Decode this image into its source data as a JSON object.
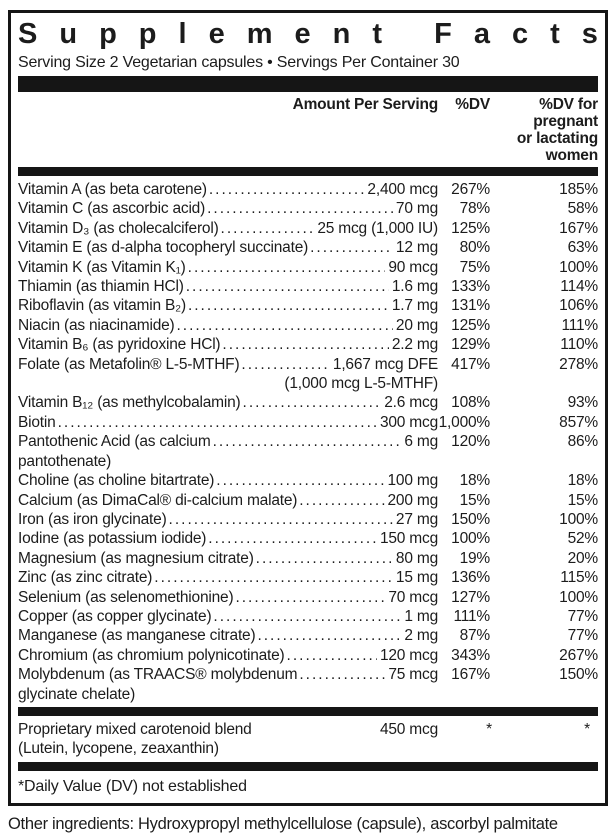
{
  "label": {
    "title": "Supplement Facts",
    "serving_line": "Serving Size 2 Vegetarian capsules • Servings Per Container 30",
    "columns": {
      "amount_header": "Amount Per Serving",
      "dv_header": "%DV",
      "pregnant_header_lines": [
        "%DV for",
        "pregnant",
        "or lactating",
        "women"
      ]
    },
    "rows": [
      {
        "name": "Vitamin A (as beta carotene)",
        "amount": "2,400 mcg",
        "dv": "267%",
        "pdv": "185%"
      },
      {
        "name": "Vitamin C (as ascorbic acid)",
        "amount": "70 mg",
        "dv": "78%",
        "pdv": "58%"
      },
      {
        "name": "Vitamin D₃ (as cholecalciferol)",
        "amount": "25 mcg (1,000 IU)",
        "dv": "125%",
        "pdv": "167%"
      },
      {
        "name": "Vitamin E (as d-alpha tocopheryl succinate)",
        "amount": "12 mg",
        "dv": "80%",
        "pdv": "63%"
      },
      {
        "name": "Vitamin K (as Vitamin K₁)",
        "amount": "90 mcg",
        "dv": "75%",
        "pdv": "100%"
      },
      {
        "name": "Thiamin (as thiamin HCl)",
        "amount": "1.6 mg",
        "dv": "133%",
        "pdv": "114%"
      },
      {
        "name": "Riboflavin (as vitamin B₂)",
        "amount": "1.7 mg",
        "dv": "131%",
        "pdv": "106%"
      },
      {
        "name": "Niacin (as niacinamide)",
        "amount": "20 mg",
        "dv": "125%",
        "pdv": "111%"
      },
      {
        "name": "Vitamin B₆ (as pyridoxine HCl)",
        "amount": "2.2 mg",
        "dv": "129%",
        "pdv": "110%"
      },
      {
        "name": "Folate (as Metafolin® L-5-MTHF)",
        "amount": "1,667 mcg DFE",
        "dv": "417%",
        "pdv": "278%",
        "continuation": "(1,000 mcg L-5-MTHF)",
        "continuation_align": "right"
      },
      {
        "name": "Vitamin B₁₂ (as methylcobalamin)",
        "amount": "2.6 mcg",
        "dv": "108%",
        "pdv": "93%"
      },
      {
        "name": "Biotin",
        "amount": "300 mcg",
        "dv": "1,000%",
        "pdv": "857%"
      },
      {
        "name": "Pantothenic Acid (as calcium",
        "amount": "6 mg",
        "dv": "120%",
        "pdv": "86%",
        "continuation": "pantothenate)",
        "continuation_align": "left"
      },
      {
        "name": "Choline (as choline bitartrate)",
        "amount": "100 mg",
        "dv": "18%",
        "pdv": "18%"
      },
      {
        "name": "Calcium (as DimaCal® di-calcium malate)",
        "amount": "200 mg",
        "dv": "15%",
        "pdv": "15%"
      },
      {
        "name": "Iron (as iron glycinate)",
        "amount": "27 mg",
        "dv": "150%",
        "pdv": "100%"
      },
      {
        "name": "Iodine (as potassium iodide)",
        "amount": "150 mcg",
        "dv": "100%",
        "pdv": "52%"
      },
      {
        "name": "Magnesium (as magnesium citrate)",
        "amount": "80 mg",
        "dv": "19%",
        "pdv": "20%"
      },
      {
        "name": "Zinc (as zinc citrate)",
        "amount": "15 mg",
        "dv": "136%",
        "pdv": "115%"
      },
      {
        "name": "Selenium (as selenomethionine)",
        "amount": "70 mcg",
        "dv": "127%",
        "pdv": "100%"
      },
      {
        "name": "Copper (as copper glycinate)",
        "amount": "1 mg",
        "dv": "111%",
        "pdv": "77%"
      },
      {
        "name": "Manganese (as manganese citrate)",
        "amount": "2 mg",
        "dv": "87%",
        "pdv": "77%"
      },
      {
        "name": "Chromium (as chromium polynicotinate)",
        "amount": "120 mcg",
        "dv": "343%",
        "pdv": "267%"
      },
      {
        "name": "Molybdenum (as TRAACS® molybdenum",
        "amount": "75 mcg",
        "dv": "167%",
        "pdv": "150%",
        "continuation": "glycinate chelate)",
        "continuation_align": "left"
      }
    ],
    "blend_row": {
      "name": "Proprietary mixed carotenoid blend",
      "amount": "450 mcg",
      "dv": "*",
      "pdv": "*",
      "continuation": "(Lutein, lycopene, zeaxanthin)",
      "continuation_align": "left"
    },
    "footnote": "*Daily Value (DV) not established",
    "other_ingredients": "Other ingredients: Hydroxypropyl methylcellulose (capsule), ascorbyl palmitate"
  },
  "colors": {
    "text": "#1c1c1c",
    "bar": "#151515",
    "border": "#151515",
    "background": "#ffffff"
  }
}
